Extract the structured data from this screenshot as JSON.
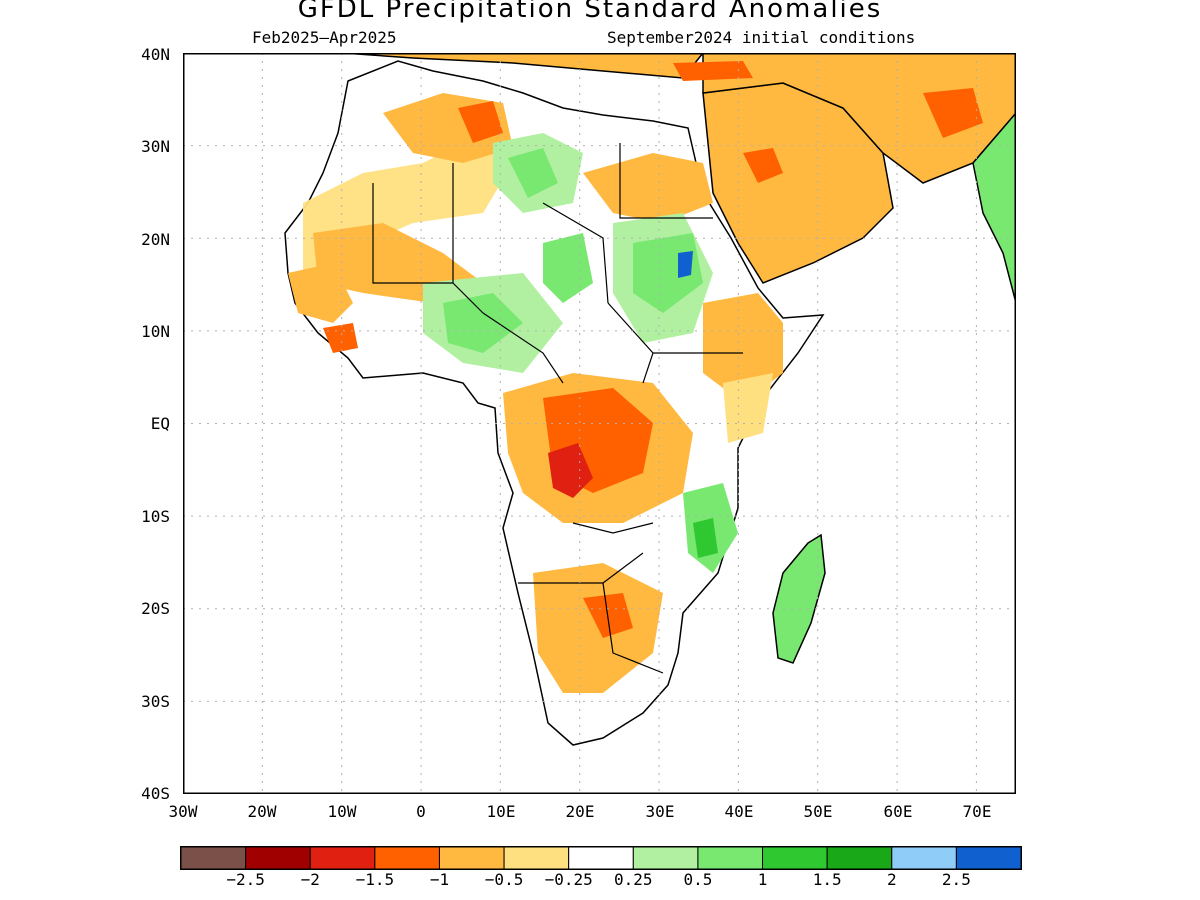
{
  "title": "GFDL Precipitation Standard Anomalies",
  "period": "Feb2025–Apr2025",
  "initial_conditions": "September2024 initial conditions",
  "lat_labels": [
    "40N",
    "30N",
    "20N",
    "10N",
    "EQ",
    "10S",
    "20S",
    "30S",
    "40S"
  ],
  "lon_labels": [
    "30W",
    "20W",
    "10W",
    "0",
    "10E",
    "20E",
    "30E",
    "40E",
    "50E",
    "60E",
    "70E"
  ],
  "colorbar": {
    "labels": [
      "−2.5",
      "−2",
      "−1.5",
      "−1",
      "−0.5",
      "−0.25",
      "0.25",
      "0.5",
      "1",
      "1.5",
      "2",
      "2.5"
    ],
    "colors": [
      "#7a5048",
      "#a00000",
      "#e02010",
      "#ff6000",
      "#ffb840",
      "#ffe080",
      "#ffffff",
      "#b0f0a0",
      "#78e870",
      "#30c830",
      "#18a818",
      "#90ccf8",
      "#1060d0"
    ]
  },
  "legend_colors": {
    "land_outline": "#000000",
    "gridline": "#b0b0b0"
  }
}
